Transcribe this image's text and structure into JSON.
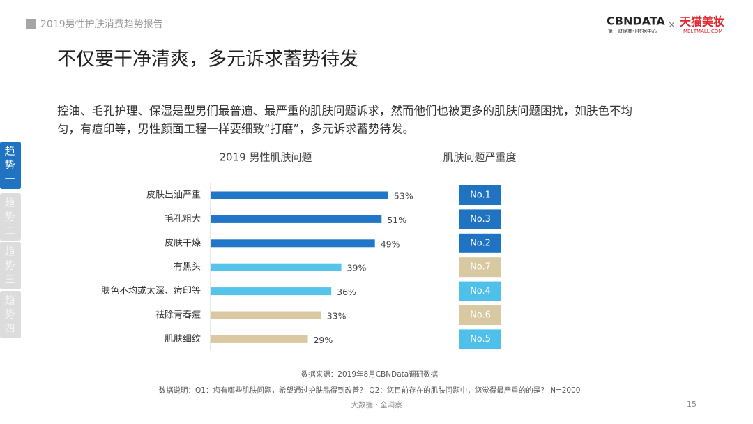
{
  "header": {
    "report": "2019男性护肤消费趋势报告",
    "brand1": "CBNDATA",
    "brand1_sub": "第一财经商业数据中心",
    "times": "×",
    "brand2": "天猫美妆",
    "brand2_sub": "MEI.TMALL.COM"
  },
  "title": "不仅要干净清爽，多元诉求蓄势待发",
  "paragraph": [
    "控油、毛孔护理、保湿是型男们最普遍、最严重的肌肤问题诉求，然而他们也被更多的肌肤问题困扰，如肤色不均",
    "匀，有痘印等，男性颜面工程一样要细致“打磨”，多元诉求蓄势待发。"
  ],
  "tabs": [
    "趋势一",
    "趋势二",
    "趋势三",
    "趋势四"
  ],
  "chart_data": {
    "type": "bar",
    "orientation": "horizontal",
    "title": "2019 男性肌肤问题",
    "categories": [
      "皮肤出油严重",
      "毛孔粗大",
      "皮肤干燥",
      "有黑头",
      "肤色不均或太深、痘印等",
      "祛除青春痘",
      "肌肤细纹"
    ],
    "values": [
      53,
      51,
      49,
      39,
      36,
      33,
      29
    ],
    "value_labels": [
      "53%",
      "51%",
      "49%",
      "39%",
      "36%",
      "33%",
      "29%"
    ],
    "colors": [
      "#2176c7",
      "#2176c7",
      "#2176c7",
      "#55c3ea",
      "#55c3ea",
      "#d9c8a0",
      "#d9c8a0"
    ],
    "xlim": [
      0,
      100
    ]
  },
  "severity": {
    "title": "肌肤问题严重度",
    "ranks": [
      "No.1",
      "No.3",
      "No.2",
      "No.7",
      "No.4",
      "No.6",
      "No.5"
    ],
    "colors": [
      "#1f73c1",
      "#1f73c1",
      "#1f73c1",
      "#d9c9a3",
      "#4ec0ea",
      "#d9c9a3",
      "#4ec0ea"
    ]
  },
  "footer": {
    "source": "数据来源：2019年8月CBNData调研数据",
    "note": "数据说明：Q1：您有哪些肌肤问题，希望通过护肤品得到改善？ Q2：您目前存在的肌肤问题中，您觉得最严重的的是？   N=2000",
    "slogan": "大数据 · 全洞察",
    "page": "15"
  }
}
